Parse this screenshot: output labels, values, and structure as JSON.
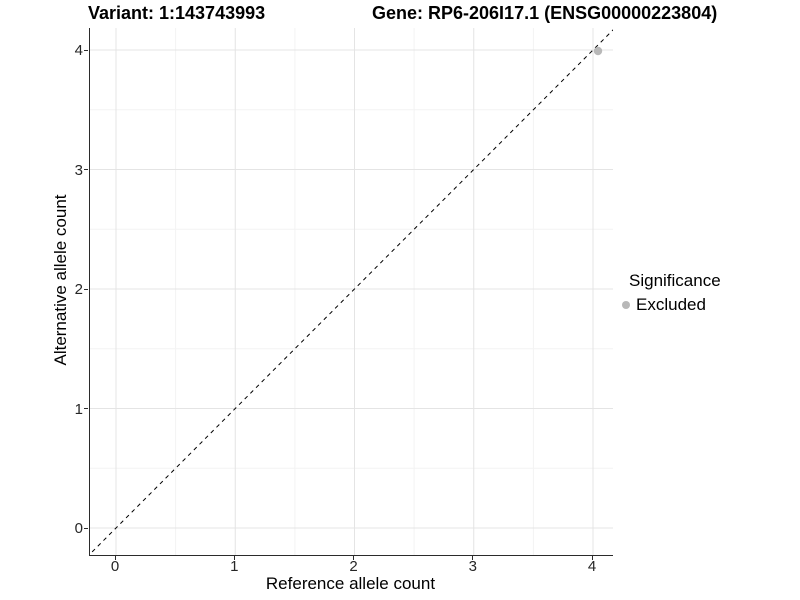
{
  "titles": {
    "variant": "Variant: 1:143743993",
    "gene": "Gene: RP6-206I17.1 (ENSG00000223804)"
  },
  "axes": {
    "x": {
      "label": "Reference allele count",
      "ticks": [
        "0",
        "1",
        "2",
        "3",
        "4"
      ]
    },
    "y": {
      "label": "Alternative allele count",
      "ticks": [
        "0",
        "1",
        "2",
        "3",
        "4"
      ]
    }
  },
  "legend": {
    "title": "Significance",
    "items": [
      {
        "label": "Excluded",
        "color": "#b8b8b8"
      }
    ]
  },
  "colors": {
    "axis_line": "#2b2b2b",
    "grid_major": "#e4e4e4",
    "grid_minor": "#f3f3f3",
    "reference_line": "#000000",
    "point": "#b8b8b8",
    "tick_text": "#262626"
  },
  "chart_data": {
    "type": "scatter",
    "title_left": "Variant: 1:143743993",
    "title_right": "Gene: RP6-206I17.1 (ENSG00000223804)",
    "xlabel": "Reference allele count",
    "ylabel": "Alternative allele count",
    "xlim": [
      -0.2,
      4.2
    ],
    "ylim": [
      -0.2,
      4.2
    ],
    "x_ticks": [
      0,
      1,
      2,
      3,
      4
    ],
    "y_ticks": [
      0,
      1,
      2,
      3,
      4
    ],
    "grid": "major+minor",
    "legend_position": "right",
    "series": [
      {
        "name": "Excluded",
        "color": "#b8b8b8",
        "points": [
          [
            4,
            4
          ]
        ]
      }
    ],
    "reference_line": {
      "type": "identity y=x",
      "style": "dashed",
      "color": "#000000"
    }
  }
}
